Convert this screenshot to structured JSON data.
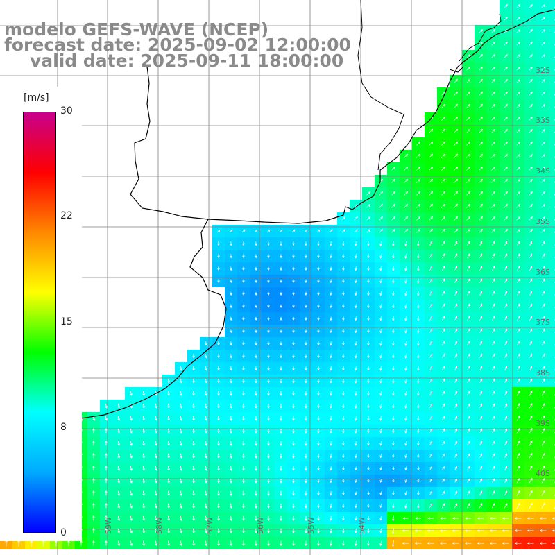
{
  "title": {
    "line1": "modelo GEFS-WAVE (NCEP)",
    "line2": "forecast date: 2025-09-02 12:00:00",
    "line3": "valid date: 2025-09-11 18:00:00"
  },
  "colorbar": {
    "unit": "[m/s]",
    "ticks": [
      "30",
      "22",
      "15",
      "8",
      "0"
    ],
    "tick_values": [
      30,
      22,
      15,
      8,
      0
    ],
    "range": [
      0,
      30
    ],
    "colors": [
      "#0000ff",
      "#00aaff",
      "#00ffff",
      "#00ff00",
      "#ffff00",
      "#ff8800",
      "#ff0000",
      "#c8008c"
    ]
  },
  "lat_labels": [
    "32S",
    "33S",
    "34S",
    "35S",
    "36S",
    "37S",
    "38S",
    "39S",
    "40S"
  ],
  "lon_labels": [
    "59W",
    "58W",
    "57W",
    "56W",
    "55W",
    "54W"
  ],
  "colors": {
    "land": "#ffffff",
    "coastline": "#000000",
    "grid": "#7f7f7f",
    "arrows": "#ffffff"
  }
}
